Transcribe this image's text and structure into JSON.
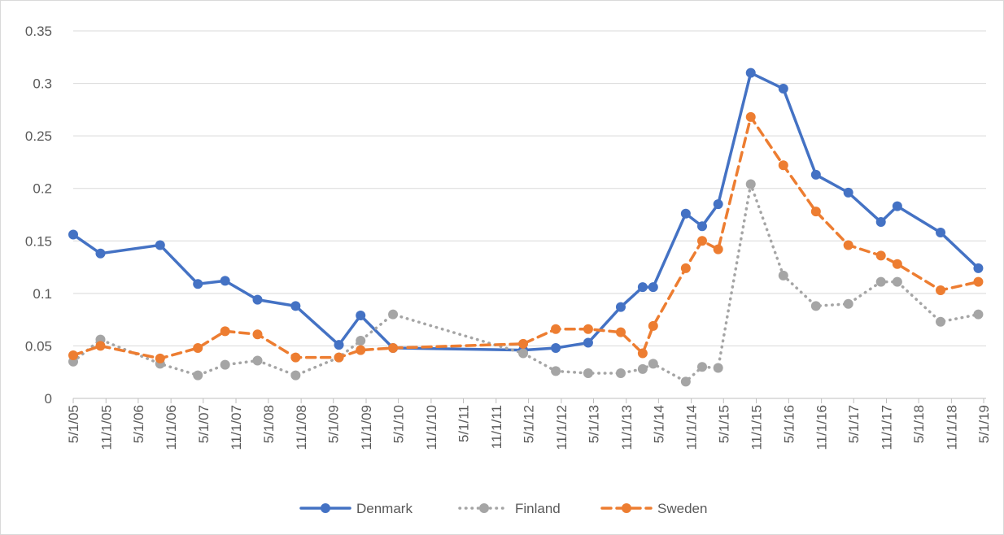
{
  "chart_data": {
    "type": "line",
    "x": [
      "5/1/05",
      "10/1/05",
      "9/1/06",
      "4/1/07",
      "9/1/07",
      "3/1/08",
      "10/1/08",
      "6/1/09",
      "10/1/09",
      "4/1/10",
      "4/1/12",
      "10/1/12",
      "4/1/13",
      "10/1/13",
      "2/1/14",
      "4/1/14",
      "10/1/14",
      "1/1/15",
      "4/1/15",
      "10/1/15",
      "4/1/16",
      "10/1/16",
      "4/1/17",
      "10/1/17",
      "1/1/18",
      "9/1/18",
      "4/1/19"
    ],
    "series": [
      {
        "name": "Denmark",
        "color": "#4472c4",
        "style": "solid",
        "values": [
          0.156,
          0.138,
          0.146,
          0.109,
          0.112,
          0.094,
          0.088,
          0.051,
          0.079,
          0.048,
          0.046,
          0.048,
          0.053,
          0.087,
          0.106,
          0.106,
          0.176,
          0.164,
          0.185,
          0.31,
          0.295,
          0.213,
          0.196,
          0.168,
          0.183,
          0.158,
          0.124
        ]
      },
      {
        "name": "Finland",
        "color": "#a5a5a5",
        "style": "dotted",
        "values": [
          0.035,
          0.056,
          0.033,
          0.022,
          0.032,
          0.036,
          0.022,
          0.039,
          0.055,
          0.08,
          0.043,
          0.026,
          0.024,
          0.024,
          0.028,
          0.033,
          0.016,
          0.03,
          0.029,
          0.204,
          0.117,
          0.088,
          0.09,
          0.111,
          0.111,
          0.073,
          0.08
        ]
      },
      {
        "name": "Sweden",
        "color": "#ed7d31",
        "style": "dashed",
        "values": [
          0.041,
          0.05,
          0.038,
          0.048,
          0.064,
          0.061,
          0.039,
          0.039,
          0.046,
          0.048,
          0.052,
          0.066,
          0.066,
          0.063,
          0.043,
          0.069,
          0.124,
          0.15,
          0.142,
          0.268,
          0.222,
          0.178,
          0.146,
          0.136,
          0.128,
          0.103,
          0.111
        ]
      }
    ],
    "xlim": [
      "5/1/05",
      "5/1/19"
    ],
    "xticks": [
      "5/1/05",
      "11/1/05",
      "5/1/06",
      "11/1/06",
      "5/1/07",
      "11/1/07",
      "5/1/08",
      "11/1/08",
      "5/1/09",
      "11/1/09",
      "5/1/10",
      "11/1/10",
      "5/1/11",
      "11/1/11",
      "5/1/12",
      "11/1/12",
      "5/1/13",
      "11/1/13",
      "5/1/14",
      "11/1/14",
      "5/1/15",
      "11/1/15",
      "5/1/16",
      "11/1/16",
      "5/1/17",
      "11/1/17",
      "5/1/18",
      "11/1/18",
      "5/1/19"
    ],
    "ylim": [
      0,
      0.35
    ],
    "yticks": [
      0,
      0.05,
      0.1,
      0.15,
      0.2,
      0.25,
      0.3,
      0.35
    ],
    "grid": true,
    "legend": "bottom"
  }
}
